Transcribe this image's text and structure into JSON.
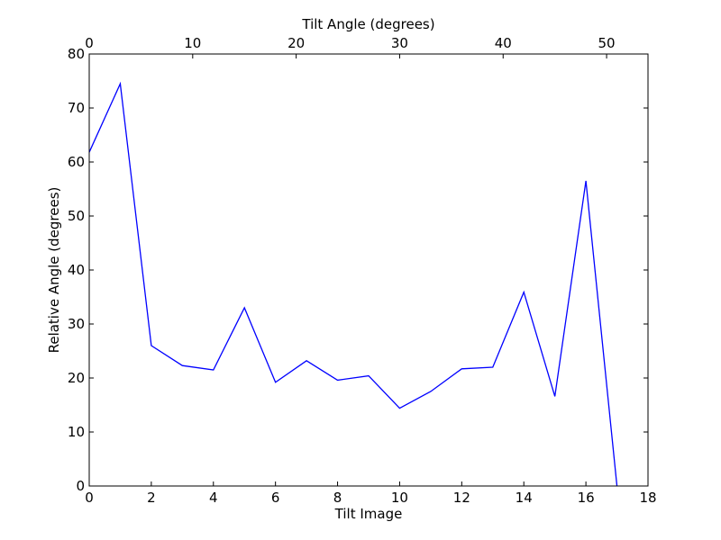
{
  "chart_data": {
    "type": "line",
    "xlabel": "Tilt Image",
    "ylabel": "Relative Angle (degrees)",
    "top_xlabel": "Tilt Angle (degrees)",
    "xlim": [
      0,
      18
    ],
    "ylim": [
      0,
      80
    ],
    "top_xlim": [
      0,
      54
    ],
    "x_ticks": [
      0,
      2,
      4,
      6,
      8,
      10,
      12,
      14,
      16,
      18
    ],
    "y_ticks": [
      0,
      10,
      20,
      30,
      40,
      50,
      60,
      70,
      80
    ],
    "top_x_ticks": [
      0,
      10,
      20,
      30,
      40,
      50
    ],
    "grid": false,
    "series": [
      {
        "color": "#0000ff",
        "x": [
          0,
          1,
          2,
          3,
          4,
          5,
          6,
          7,
          8,
          9,
          10,
          11,
          12,
          13,
          14,
          15,
          16,
          17
        ],
        "values": [
          61.8,
          74.5,
          26.0,
          22.3,
          21.5,
          33.0,
          19.2,
          23.2,
          19.6,
          20.4,
          14.4,
          17.5,
          21.7,
          22.0,
          35.9,
          16.6,
          56.5,
          0.0
        ]
      }
    ]
  }
}
